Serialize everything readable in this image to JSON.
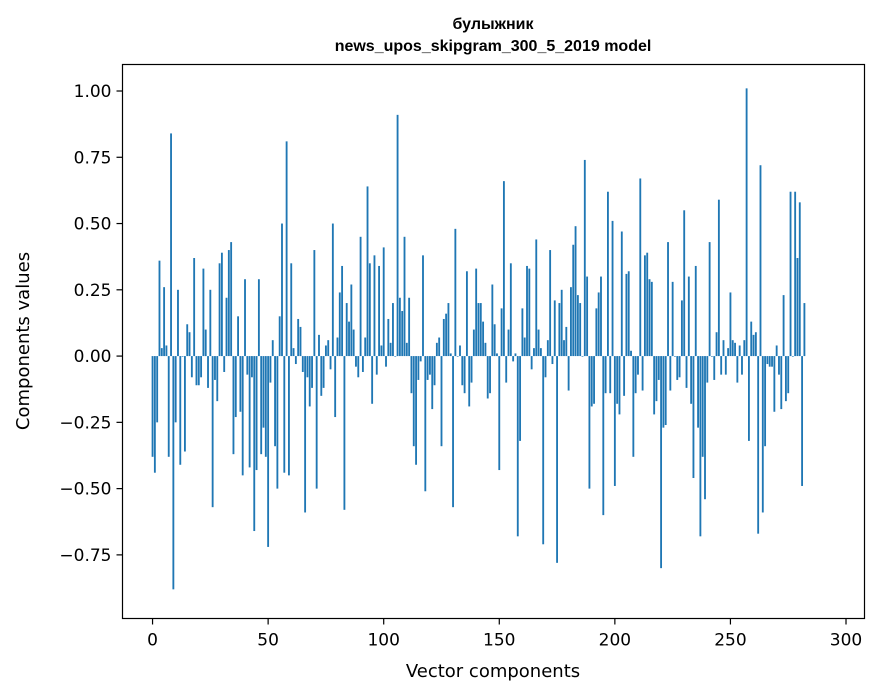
{
  "chart_data": {
    "type": "bar",
    "title": "булыжник",
    "subtitle": "news_upos_skipgram_300_5_2019 model",
    "xlabel": "Vector components",
    "ylabel": "Components values",
    "xlim": [
      -13,
      308
    ],
    "ylim": [
      -0.99,
      1.1
    ],
    "xticks": [
      0,
      50,
      100,
      150,
      200,
      250,
      300
    ],
    "xtick_labels": [
      "0",
      "50",
      "100",
      "150",
      "200",
      "250",
      "300"
    ],
    "yticks": [
      -0.75,
      -0.5,
      -0.25,
      0.0,
      0.25,
      0.5,
      0.75,
      1.0
    ],
    "ytick_labels": [
      "−0.75",
      "−0.50",
      "−0.25",
      "0.00",
      "0.25",
      "0.50",
      "0.75",
      "1.00"
    ],
    "grid": false,
    "bar_color": "#1f77b4",
    "x_start": 0,
    "values": [
      -0.38,
      -0.44,
      -0.25,
      0.36,
      0.03,
      0.26,
      0.04,
      -0.38,
      0.84,
      -0.88,
      -0.25,
      0.25,
      -0.41,
      0.0,
      -0.36,
      0.12,
      0.09,
      -0.08,
      0.37,
      -0.11,
      -0.11,
      -0.08,
      0.33,
      0.1,
      -0.12,
      0.25,
      -0.57,
      -0.09,
      -0.17,
      0.35,
      0.39,
      -0.06,
      0.22,
      0.4,
      0.43,
      -0.37,
      -0.23,
      0.15,
      -0.21,
      -0.45,
      0.29,
      -0.07,
      -0.42,
      -0.08,
      -0.66,
      -0.43,
      0.29,
      -0.37,
      -0.27,
      -0.38,
      -0.72,
      -0.1,
      0.06,
      -0.34,
      -0.5,
      0.15,
      0.5,
      -0.44,
      0.81,
      -0.45,
      0.35,
      0.03,
      -0.03,
      0.14,
      0.11,
      -0.06,
      -0.59,
      -0.08,
      -0.19,
      -0.12,
      0.4,
      -0.5,
      0.08,
      -0.15,
      -0.12,
      0.04,
      0.06,
      -0.05,
      0.5,
      -0.23,
      0.07,
      0.24,
      0.34,
      -0.58,
      0.2,
      0.13,
      0.27,
      0.1,
      -0.04,
      -0.08,
      0.45,
      -0.06,
      0.07,
      0.64,
      0.35,
      -0.18,
      0.38,
      -0.07,
      0.34,
      0.04,
      0.41,
      -0.04,
      0.14,
      0.05,
      0.2,
      0.0,
      0.91,
      0.22,
      0.17,
      0.45,
      0.05,
      0.22,
      -0.14,
      -0.34,
      -0.41,
      -0.09,
      -0.02,
      0.38,
      -0.51,
      -0.09,
      -0.07,
      -0.2,
      -0.11,
      0.05,
      0.07,
      -0.34,
      0.14,
      0.16,
      0.2,
      0.01,
      -0.57,
      0.48,
      0.0,
      0.04,
      -0.11,
      -0.14,
      0.32,
      -0.19,
      -0.1,
      0.1,
      0.33,
      0.2,
      0.2,
      0.13,
      0.05,
      -0.16,
      -0.14,
      0.27,
      0.12,
      0.01,
      -0.43,
      0.18,
      0.66,
      -0.1,
      0.1,
      0.35,
      -0.02,
      0.01,
      -0.68,
      -0.32,
      0.18,
      0.07,
      0.34,
      0.33,
      -0.05,
      0.03,
      0.44,
      0.1,
      0.03,
      -0.71,
      -0.08,
      0.06,
      0.4,
      -0.03,
      0.21,
      -0.78,
      0.2,
      0.25,
      0.06,
      0.11,
      -0.13,
      0.26,
      0.42,
      0.49,
      0.23,
      0.2,
      0.0,
      0.74,
      0.3,
      -0.5,
      -0.19,
      -0.18,
      0.18,
      0.24,
      0.3,
      -0.6,
      -0.14,
      0.62,
      -0.14,
      0.51,
      -0.49,
      -0.18,
      -0.22,
      0.47,
      -0.15,
      0.31,
      0.32,
      0.02,
      -0.38,
      -0.14,
      -0.07,
      0.67,
      -0.13,
      0.38,
      0.39,
      0.29,
      0.28,
      -0.22,
      -0.17,
      -0.09,
      -0.8,
      -0.27,
      -0.26,
      0.43,
      -0.13,
      0.28,
      0.0,
      -0.09,
      -0.08,
      0.21,
      0.55,
      -0.12,
      0.3,
      -0.18,
      -0.46,
      0.34,
      -0.27,
      -0.68,
      -0.38,
      -0.54,
      -0.1,
      0.43,
      0.0,
      -0.09,
      0.09,
      0.59,
      -0.07,
      0.06,
      -0.07,
      0.03,
      0.24,
      0.06,
      0.05,
      -0.1,
      0.04,
      -0.07,
      0.06,
      1.01,
      -0.32,
      0.13,
      0.08,
      0.09,
      -0.67,
      0.72,
      -0.59,
      -0.34,
      -0.03,
      -0.04,
      -0.04,
      -0.21,
      0.04,
      -0.07,
      -0.2,
      0.23,
      -0.17,
      -0.14,
      0.62,
      0.0,
      0.62,
      0.37,
      0.58,
      -0.49,
      0.2
    ]
  }
}
